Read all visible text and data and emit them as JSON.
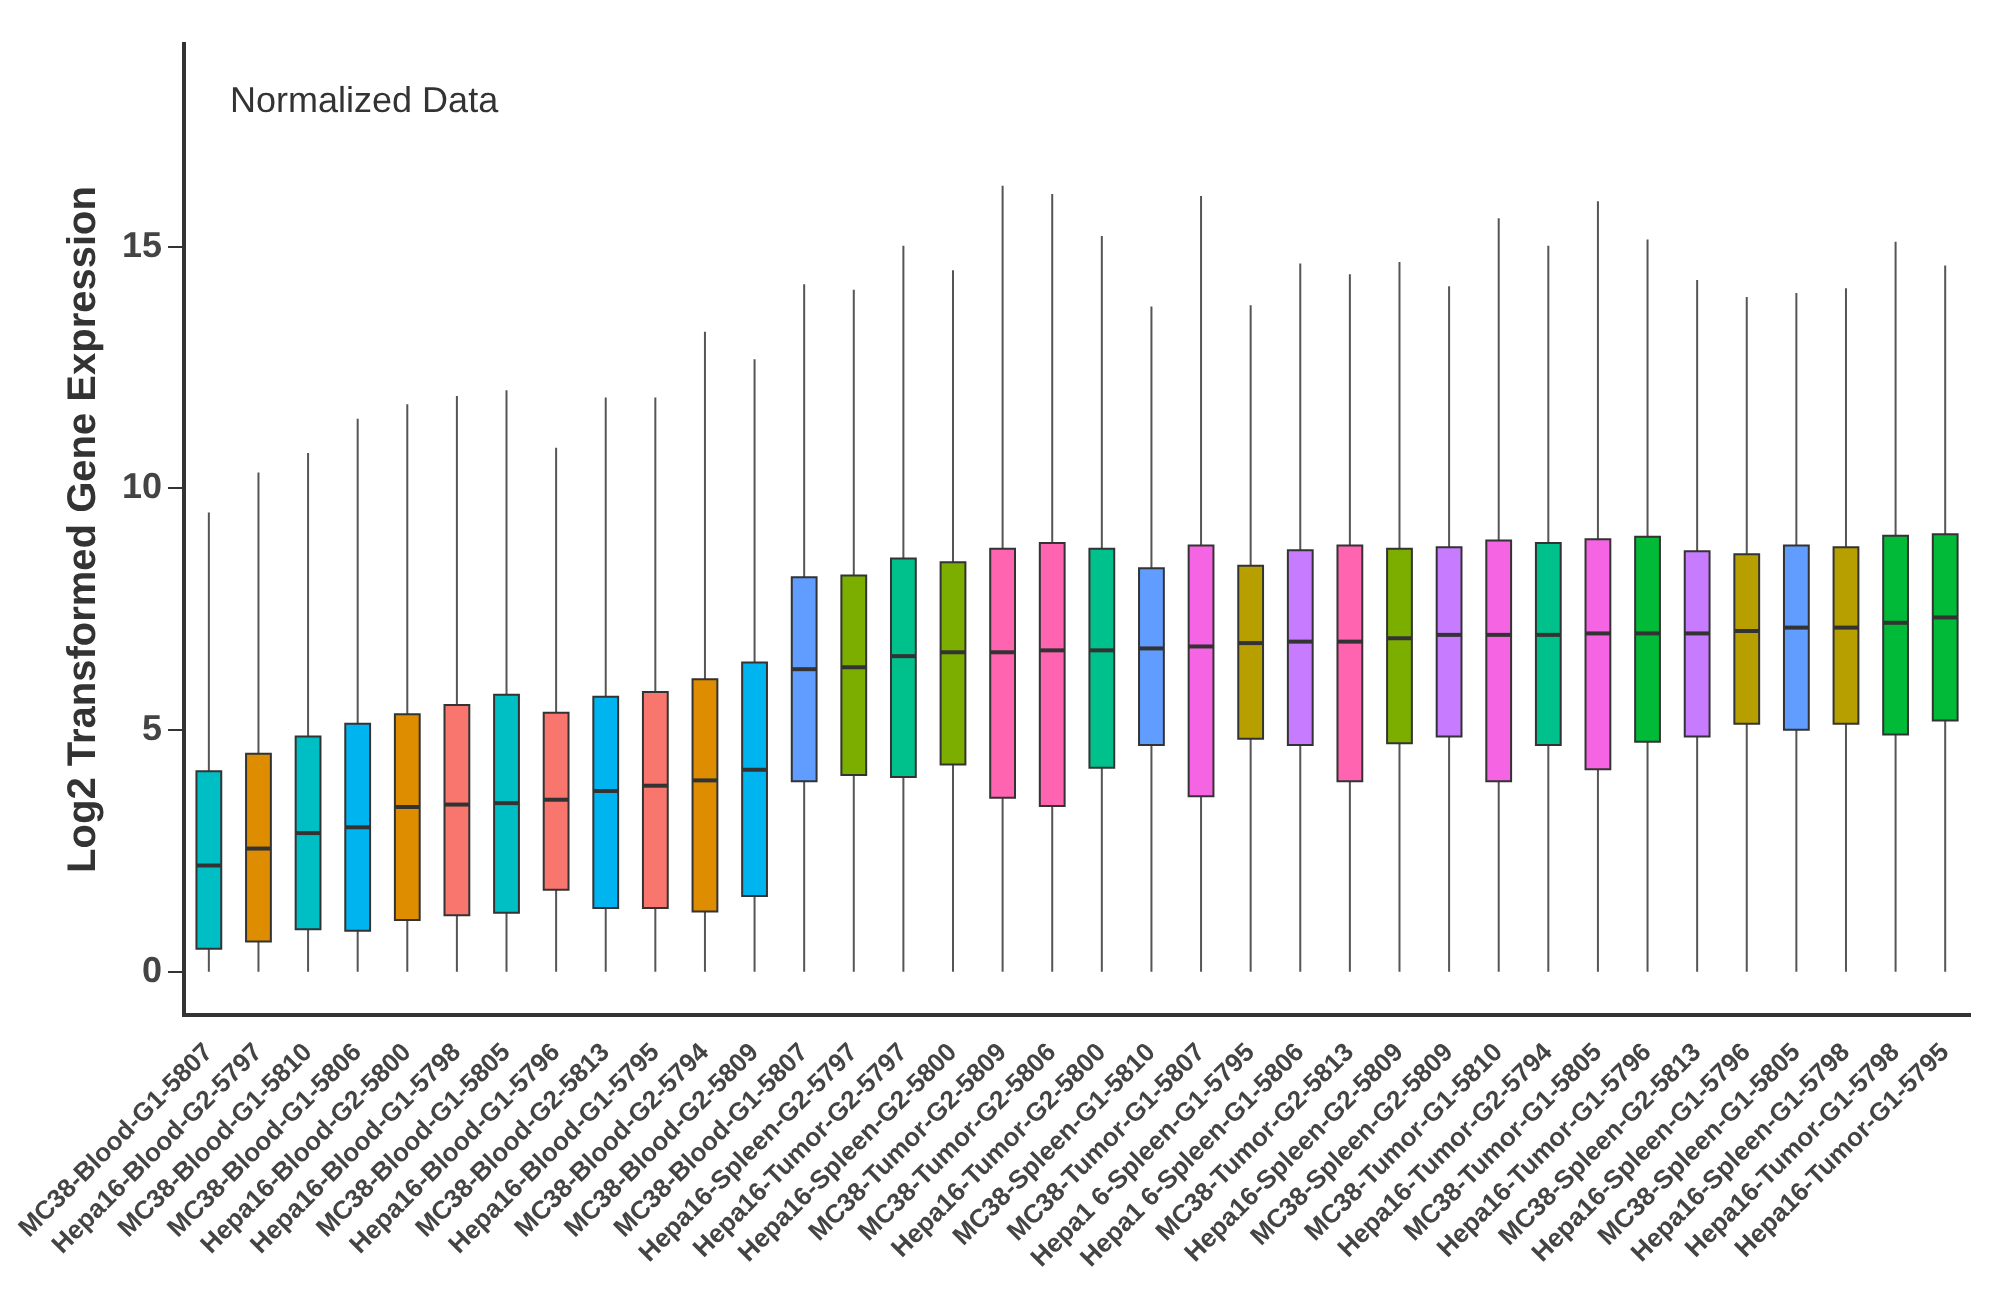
{
  "chart_data": {
    "type": "box",
    "ylabel": "Log2 Transformed Gene Expression",
    "annotations": [
      "Normalized Data"
    ],
    "categories": [
      "MC38-Blood-G1-5807",
      "Hepa16-Blood-G2-5797",
      "MC38-Blood-G1-5810",
      "MC38-Blood-G1-5806",
      "Hepa16-Blood-G2-5800",
      "Hepa16-Blood-G1-5798",
      "MC38-Blood-G1-5805",
      "Hepa16-Blood-G1-5796",
      "MC38-Blood-G2-5813",
      "Hepa16-Blood-G1-5795",
      "MC38-Blood-G2-5794",
      "MC38-Blood-G2-5809",
      "MC38-Blood-G1-5807",
      "Hepa16-Spleen-G2-5797",
      "Hepa16-Tumor-G2-5797",
      "Hepa16-Spleen-G2-5800",
      "MC38-Tumor-G2-5809",
      "MC38-Tumor-G2-5806",
      "Hepa16-Tumor-G2-5800",
      "MC38-Spleen-G1-5810",
      "MC38-Tumor-G1-5807",
      "Hepa1 6-Spleen-G1-5795",
      "Hepa1 6-Spleen-G1-5806",
      "MC38-Tumor-G2-5813",
      "Hepa16-Spleen-G2-5809",
      "MC38-Spleen-G2-5809",
      "MC38-Tumor-G1-5810",
      "Hepa16-Tumor-G2-5794",
      "MC38-Tumor-G1-5805",
      "Hepa16-Tumor-G1-5796",
      "MC38-Spleen-G2-5813",
      "Hepa16-Spleen-G1-5796",
      "MC38-Spleen-G1-5805",
      "Hepa16-Spleen-G1-5798",
      "Hepa16-Tumor-G1-5798",
      "Hepa16-Tumor-G1-5795"
    ],
    "colors": [
      "#00bfc4",
      "#de8c00",
      "#00bfc4",
      "#00b4ef",
      "#de8c00",
      "#f8766d",
      "#00bfc4",
      "#f8766d",
      "#00b4ef",
      "#f8766d",
      "#de8c00",
      "#00b4ef",
      "#619cff",
      "#7cae00",
      "#00c08b",
      "#7cae00",
      "#ff64b0",
      "#ff64b0",
      "#00c08b",
      "#619cff",
      "#f564e3",
      "#b79f00",
      "#c77cff",
      "#ff64b0",
      "#7cae00",
      "#c77cff",
      "#f564e3",
      "#00c08b",
      "#f564e3",
      "#00ba38",
      "#c77cff",
      "#b79f00",
      "#619cff",
      "#b79f00",
      "#00ba38",
      "#00ba38"
    ],
    "boxes": [
      {
        "low": 0,
        "q1": 0.48,
        "median": 2.2,
        "q3": 4.15,
        "high": 9.5
      },
      {
        "low": 0,
        "q1": 0.63,
        "median": 2.55,
        "q3": 4.51,
        "high": 10.33
      },
      {
        "low": 0,
        "q1": 0.88,
        "median": 2.87,
        "q3": 4.87,
        "high": 10.73
      },
      {
        "low": 0,
        "q1": 0.85,
        "median": 2.99,
        "q3": 5.13,
        "high": 11.44
      },
      {
        "low": 0,
        "q1": 1.07,
        "median": 3.41,
        "q3": 5.33,
        "high": 11.74
      },
      {
        "low": 0,
        "q1": 1.17,
        "median": 3.46,
        "q3": 5.52,
        "high": 11.91
      },
      {
        "low": 0,
        "q1": 1.22,
        "median": 3.49,
        "q3": 5.73,
        "high": 12.03
      },
      {
        "low": 0,
        "q1": 1.7,
        "median": 3.56,
        "q3": 5.36,
        "high": 10.84
      },
      {
        "low": 0,
        "q1": 1.32,
        "median": 3.74,
        "q3": 5.69,
        "high": 11.88
      },
      {
        "low": 0,
        "q1": 1.32,
        "median": 3.85,
        "q3": 5.79,
        "high": 11.88
      },
      {
        "low": 0,
        "q1": 1.25,
        "median": 3.96,
        "q3": 6.05,
        "high": 13.24
      },
      {
        "low": 0,
        "q1": 1.57,
        "median": 4.18,
        "q3": 6.4,
        "high": 12.67
      },
      {
        "low": 0,
        "q1": 3.94,
        "median": 6.26,
        "q3": 8.16,
        "high": 14.22
      },
      {
        "low": 0,
        "q1": 4.07,
        "median": 6.3,
        "q3": 8.2,
        "high": 14.11
      },
      {
        "low": 0,
        "q1": 4.03,
        "median": 6.53,
        "q3": 8.55,
        "high": 15.02
      },
      {
        "low": 0,
        "q1": 4.29,
        "median": 6.61,
        "q3": 8.47,
        "high": 14.51
      },
      {
        "low": 0,
        "q1": 3.6,
        "median": 6.61,
        "q3": 8.75,
        "high": 16.26
      },
      {
        "low": 0,
        "q1": 3.43,
        "median": 6.65,
        "q3": 8.87,
        "high": 16.09
      },
      {
        "low": 0,
        "q1": 4.22,
        "median": 6.65,
        "q3": 8.75,
        "high": 15.22
      },
      {
        "low": 0,
        "q1": 4.69,
        "median": 6.69,
        "q3": 8.35,
        "high": 13.76
      },
      {
        "low": 0,
        "q1": 3.63,
        "median": 6.73,
        "q3": 8.82,
        "high": 16.05
      },
      {
        "low": 0,
        "q1": 4.82,
        "median": 6.8,
        "q3": 8.4,
        "high": 13.79
      },
      {
        "low": 0,
        "q1": 4.69,
        "median": 6.83,
        "q3": 8.72,
        "high": 14.65
      },
      {
        "low": 0,
        "q1": 3.94,
        "median": 6.83,
        "q3": 8.82,
        "high": 14.43
      },
      {
        "low": 0,
        "q1": 4.73,
        "median": 6.9,
        "q3": 8.75,
        "high": 14.68
      },
      {
        "low": 0,
        "q1": 4.87,
        "median": 6.97,
        "q3": 8.78,
        "high": 14.18
      },
      {
        "low": 0,
        "q1": 3.94,
        "median": 6.97,
        "q3": 8.92,
        "high": 15.59
      },
      {
        "low": 0,
        "q1": 4.69,
        "median": 6.97,
        "q3": 8.87,
        "high": 15.02
      },
      {
        "low": 0,
        "q1": 4.19,
        "median": 7.0,
        "q3": 8.95,
        "high": 15.94
      },
      {
        "low": 0,
        "q1": 4.76,
        "median": 7.0,
        "q3": 9.0,
        "high": 15.15
      },
      {
        "low": 0,
        "q1": 4.87,
        "median": 7.0,
        "q3": 8.7,
        "high": 14.31
      },
      {
        "low": 0,
        "q1": 5.13,
        "median": 7.05,
        "q3": 8.64,
        "high": 13.96
      },
      {
        "low": 0,
        "q1": 5.01,
        "median": 7.12,
        "q3": 8.82,
        "high": 14.04
      },
      {
        "low": 0,
        "q1": 5.13,
        "median": 7.12,
        "q3": 8.78,
        "high": 14.14
      },
      {
        "low": 0,
        "q1": 4.91,
        "median": 7.22,
        "q3": 9.02,
        "high": 15.1
      },
      {
        "low": 0,
        "q1": 5.2,
        "median": 7.33,
        "q3": 9.05,
        "high": 14.61
      }
    ],
    "ylim": [
      -0.9,
      19.2
    ],
    "yticks": [
      0,
      5,
      10,
      15
    ],
    "grid": false,
    "legend": false
  }
}
